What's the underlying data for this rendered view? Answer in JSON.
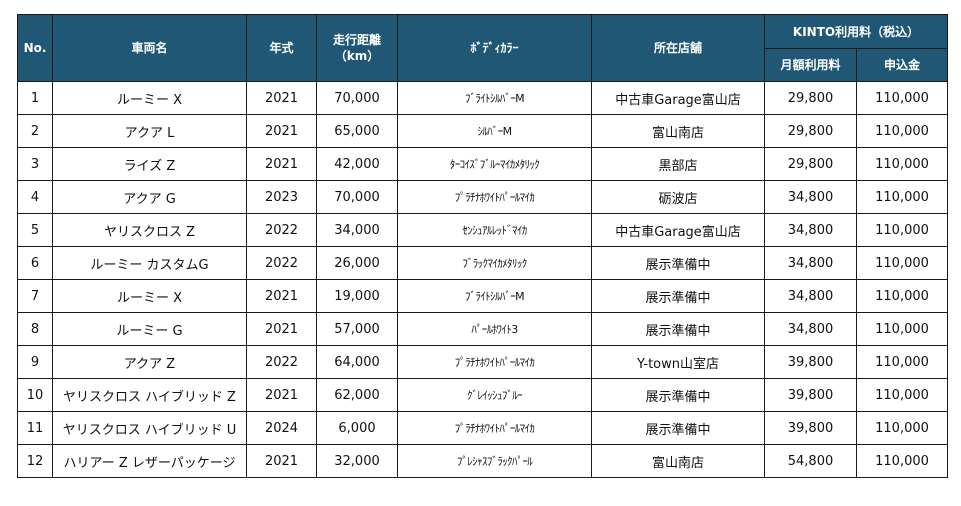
{
  "header": {
    "no": "No.",
    "vehicle": "車両名",
    "year": "年式",
    "mileage_line1": "走行距離",
    "mileage_line2": "（km）",
    "color": "ﾎﾞﾃﾞｨｶﾗｰ",
    "store": "所在店舗",
    "kinto": "KINTO利用料（税込）",
    "monthly": "月額利用料",
    "deposit": "申込金"
  },
  "rows": [
    {
      "no": "1",
      "vehicle": "ルーミー X",
      "year": "2021",
      "mileage": "70,000",
      "color": "ﾌﾞﾗｲﾄｼﾙﾊﾞｰM",
      "store": "中古車Garage富山店",
      "monthly": "29,800",
      "deposit": "110,000"
    },
    {
      "no": "2",
      "vehicle": "アクア L",
      "year": "2021",
      "mileage": "65,000",
      "color": "ｼﾙﾊﾞｰM",
      "store": "富山南店",
      "monthly": "29,800",
      "deposit": "110,000"
    },
    {
      "no": "3",
      "vehicle": "ライズ Z",
      "year": "2021",
      "mileage": "42,000",
      "color": "ﾀｰｺｲｽﾞﾌﾞﾙｰﾏｲｶﾒﾀﾘｯｸ",
      "store": "黒部店",
      "monthly": "29,800",
      "deposit": "110,000"
    },
    {
      "no": "4",
      "vehicle": "アクア G",
      "year": "2023",
      "mileage": "70,000",
      "color": "ﾌﾟﾗﾁﾅﾎﾜｲﾄﾊﾟｰﾙﾏｲｶ",
      "store": "砺波店",
      "monthly": "34,800",
      "deposit": "110,000"
    },
    {
      "no": "5",
      "vehicle": "ヤリスクロス Z",
      "year": "2022",
      "mileage": "34,000",
      "color": "ｾﾝｼｭｱﾙﾚｯﾄﾞﾏｲｶ",
      "store": "中古車Garage富山店",
      "monthly": "34,800",
      "deposit": "110,000"
    },
    {
      "no": "6",
      "vehicle": "ルーミー カスタムG",
      "year": "2022",
      "mileage": "26,000",
      "color": "ﾌﾞﾗｯｸﾏｲｶﾒﾀﾘｯｸ",
      "store": "展示準備中",
      "monthly": "34,800",
      "deposit": "110,000"
    },
    {
      "no": "7",
      "vehicle": "ルーミー X",
      "year": "2021",
      "mileage": "19,000",
      "color": "ﾌﾞﾗｲﾄｼﾙﾊﾞｰM",
      "store": "展示準備中",
      "monthly": "34,800",
      "deposit": "110,000"
    },
    {
      "no": "8",
      "vehicle": "ルーミー G",
      "year": "2021",
      "mileage": "57,000",
      "color": "ﾊﾟｰﾙﾎﾜｲﾄ3",
      "store": "展示準備中",
      "monthly": "34,800",
      "deposit": "110,000"
    },
    {
      "no": "9",
      "vehicle": "アクア Z",
      "year": "2022",
      "mileage": "64,000",
      "color": "ﾌﾟﾗﾁﾅﾎﾜｲﾄﾊﾟｰﾙﾏｲｶ",
      "store": "Y-town山室店",
      "monthly": "39,800",
      "deposit": "110,000"
    },
    {
      "no": "10",
      "vehicle": "ヤリスクロス ハイブリッド Z",
      "year": "2021",
      "mileage": "62,000",
      "color": "ｸﾞﾚｲｯｼｭﾌﾞﾙｰ",
      "store": "展示準備中",
      "monthly": "39,800",
      "deposit": "110,000"
    },
    {
      "no": "11",
      "vehicle": "ヤリスクロス ハイブリッド U",
      "year": "2024",
      "mileage": "6,000",
      "color": "ﾌﾟﾗﾁﾅﾎﾜｲﾄﾊﾟｰﾙﾏｲｶ",
      "store": "展示準備中",
      "monthly": "39,800",
      "deposit": "110,000"
    },
    {
      "no": "12",
      "vehicle": "ハリアー Z レザーパッケージ",
      "year": "2021",
      "mileage": "32,000",
      "color": "ﾌﾟﾚｼｬｽﾌﾞﾗｯｸﾊﾟｰﾙ",
      "store": "富山南店",
      "monthly": "54,800",
      "deposit": "110,000"
    }
  ],
  "colors": {
    "header_bg": "#1f5774",
    "header_text": "#ffffff",
    "border": "#1a1a1a"
  }
}
